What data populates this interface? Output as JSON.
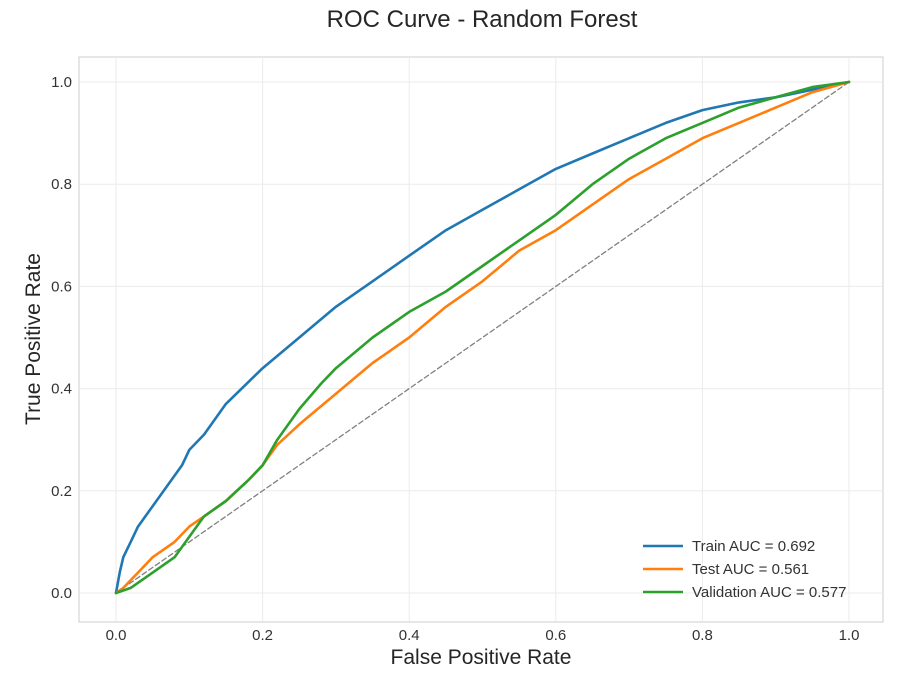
{
  "chart_data": {
    "type": "line",
    "title": "ROC Curve - Random Forest",
    "xlabel": "False Positive Rate",
    "ylabel": "True Positive Rate",
    "xlim": [
      -0.05,
      1.05
    ],
    "ylim": [
      -0.05,
      1.05
    ],
    "xticks": [
      "0.0",
      "0.2",
      "0.4",
      "0.6",
      "0.8",
      "1.0"
    ],
    "yticks": [
      "0.0",
      "0.2",
      "0.4",
      "0.6",
      "0.8",
      "1.0"
    ],
    "grid": true,
    "legend_position": "lower-right",
    "series": [
      {
        "name": "Train AUC = 0.692",
        "color": "#1f77b4",
        "x": [
          0,
          0.005,
          0.01,
          0.02,
          0.03,
          0.05,
          0.07,
          0.09,
          0.1,
          0.12,
          0.15,
          0.2,
          0.25,
          0.3,
          0.35,
          0.4,
          0.45,
          0.5,
          0.55,
          0.6,
          0.65,
          0.7,
          0.75,
          0.8,
          0.85,
          0.9,
          0.95,
          0.98,
          1.0
        ],
        "y": [
          0,
          0.04,
          0.07,
          0.1,
          0.13,
          0.17,
          0.21,
          0.25,
          0.28,
          0.31,
          0.37,
          0.44,
          0.5,
          0.56,
          0.61,
          0.66,
          0.71,
          0.75,
          0.79,
          0.83,
          0.86,
          0.89,
          0.92,
          0.945,
          0.96,
          0.97,
          0.985,
          0.995,
          1.0
        ]
      },
      {
        "name": "Test AUC = 0.561",
        "color": "#ff7f0e",
        "x": [
          0,
          0.01,
          0.03,
          0.05,
          0.08,
          0.1,
          0.12,
          0.15,
          0.18,
          0.2,
          0.22,
          0.25,
          0.3,
          0.35,
          0.4,
          0.45,
          0.5,
          0.55,
          0.6,
          0.65,
          0.7,
          0.75,
          0.8,
          0.85,
          0.9,
          0.95,
          1.0
        ],
        "y": [
          0,
          0.01,
          0.04,
          0.07,
          0.1,
          0.13,
          0.15,
          0.18,
          0.22,
          0.25,
          0.29,
          0.33,
          0.39,
          0.45,
          0.5,
          0.56,
          0.61,
          0.67,
          0.71,
          0.76,
          0.81,
          0.85,
          0.89,
          0.92,
          0.95,
          0.98,
          1.0
        ]
      },
      {
        "name": "Validation AUC = 0.577",
        "color": "#2ca02c",
        "x": [
          0,
          0.02,
          0.05,
          0.08,
          0.1,
          0.12,
          0.15,
          0.18,
          0.2,
          0.22,
          0.25,
          0.28,
          0.3,
          0.35,
          0.4,
          0.45,
          0.5,
          0.55,
          0.6,
          0.65,
          0.7,
          0.75,
          0.8,
          0.85,
          0.9,
          0.95,
          1.0
        ],
        "y": [
          0,
          0.01,
          0.04,
          0.07,
          0.11,
          0.15,
          0.18,
          0.22,
          0.25,
          0.3,
          0.36,
          0.41,
          0.44,
          0.5,
          0.55,
          0.59,
          0.64,
          0.69,
          0.74,
          0.8,
          0.85,
          0.89,
          0.92,
          0.95,
          0.97,
          0.99,
          1.0
        ]
      },
      {
        "name": "",
        "color": "#808080",
        "dashed": true,
        "x": [
          0,
          1
        ],
        "y": [
          0,
          1
        ]
      }
    ]
  }
}
